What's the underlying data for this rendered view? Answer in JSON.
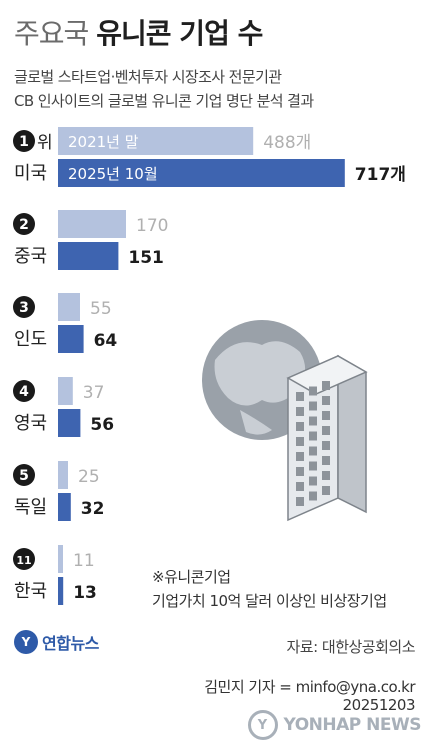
{
  "header": {
    "title_gray": "주요국",
    "title_bold": "유니콘 기업 수",
    "subtitle_lines": [
      "글로벌 스타트업·벤처투자 시장조사 전문기관",
      "CB 인사이트의 글로벌 유니콘 기업 명단 분석 결과"
    ]
  },
  "chart_data": {
    "type": "bar",
    "orientation": "horizontal",
    "categories": [
      "미국",
      "중국",
      "인도",
      "영국",
      "독일",
      "한국"
    ],
    "ranks": [
      "1",
      "2",
      "3",
      "4",
      "5",
      "11"
    ],
    "rank_suffix": "위",
    "unit_suffix": "개",
    "series": [
      {
        "name": "2021년 말",
        "values": [
          488,
          170,
          55,
          37,
          25,
          11
        ],
        "color": "#b4c2de"
      },
      {
        "name": "2025년 10월",
        "values": [
          717,
          151,
          64,
          56,
          32,
          13
        ],
        "color": "#3e64b0"
      }
    ]
  },
  "colors": {
    "old_bar": "#b4c2de",
    "new_bar": "#3e64b0",
    "old_label": "#b0b0b0",
    "new_label": "#1c1c1c"
  },
  "notes": {
    "unicorn_title": "※유니콘기업",
    "unicorn_desc": "기업가치 10억 달러 이상인 비상장기업",
    "source": "자료: 대한상공회의소",
    "reporter": "김민지 기자 = minfo@yna.co.kr",
    "date": "20251203"
  },
  "logo": {
    "text": "연합뉴스",
    "mark": "Y"
  },
  "watermark": {
    "text": "YONHAP NEWS",
    "mark": "Y"
  }
}
